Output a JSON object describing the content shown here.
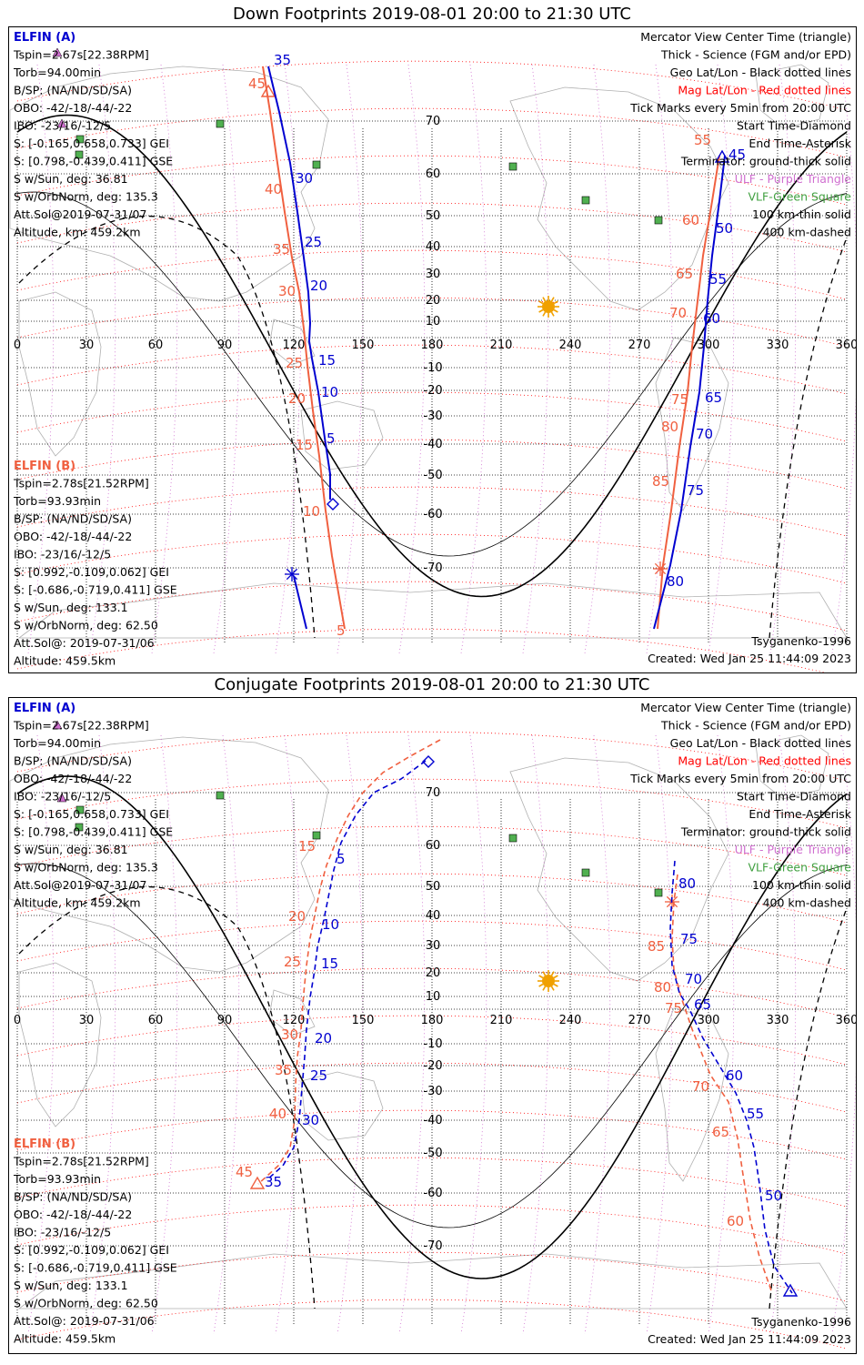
{
  "colors": {
    "probe_a": "#0000d0",
    "probe_b": "#f06040",
    "mag_grid": "#ff0000",
    "science": "#000000",
    "ulf": "#d070d0",
    "vlf": "#40a040",
    "vlf_fill": "#50b050",
    "sun": "#f0a000",
    "coast": "#b0b0b0"
  },
  "panels": [
    {
      "id": "down",
      "title": "Down Footprints 2019-08-01 20:00 to 21:30 UTC",
      "lon_ticks": [
        "0",
        "30",
        "60",
        "90",
        "120",
        "150",
        "180",
        "210",
        "240",
        "270",
        "300",
        "330",
        "360"
      ],
      "lat_ticks": [
        "70",
        "60",
        "50",
        "40",
        "30",
        "20",
        "10",
        "-10",
        "-20",
        "-30",
        "-40",
        "-50",
        "-60",
        "-70"
      ],
      "probe_a": {
        "label": "ELFIN (A)",
        "lines": [
          "Tspin=2.67s[22.38RPM]",
          "Torb=94.00min",
          "B/SP: (NA/ND/SD/SA)",
          "OBO: -42/-18/-44/-22",
          "IBO: -23/16/-12/5",
          "S: [-0.165,0.658,0.733] GEI",
          "S: [0.798,-0.439,0.411] GSE",
          "S w/Sun, deg: 36.81",
          "S w/OrbNorm, deg: 135.3",
          "Att.Sol@2019-07-31/07",
          "Altitude, km: 459.2km"
        ]
      },
      "probe_b": {
        "label": "ELFIN (B)",
        "lines": [
          "Tspin=2.78s[21.52RPM]",
          "Torb=93.93min",
          "B/SP: (NA/ND/SD/SA)",
          "OBO: -42/-18/-44/-22",
          "IBO: -23/16/-12/5",
          "S: [0.992,-0.109,0.062] GEI",
          "S: [-0.686,-0.719,0.411] GSE",
          "S w/Sun, deg: 133.1",
          "S w/OrbNorm, deg: 62.50",
          "Att.Sol@: 2019-07-31/06",
          "Altitude: 459.5km"
        ]
      },
      "legend": [
        {
          "text": "Mercator View Center Time (triangle)",
          "color": "#000000"
        },
        {
          "text": "Thick - Science (FGM and/or EPD)",
          "color": "#000000"
        },
        {
          "text": "Geo Lat/Lon - Black dotted lines",
          "color": "#000000"
        },
        {
          "text": "Mag Lat/Lon - Red dotted lines",
          "color": "#ff0000"
        },
        {
          "text": "Tick Marks every 5min from 20:00 UTC",
          "color": "#000000"
        },
        {
          "text": "Start Time-Diamond",
          "color": "#000000"
        },
        {
          "text": "End Time-Asterisk",
          "color": "#000000"
        },
        {
          "text": "Terminator: ground-thick solid",
          "color": "#000000"
        },
        {
          "text": "ULF - Purple Triangle",
          "color": "#d070d0"
        },
        {
          "text": "VLF-Green Square",
          "color": "#40a040"
        },
        {
          "text": "100 km-thin solid",
          "color": "#000000"
        },
        {
          "text": "400 km-dashed",
          "color": "#000000"
        }
      ],
      "model": "Tsyganenko-1996",
      "created": "Created: Wed Jan 25 11:44:09 2023",
      "track_a": {
        "style": "solid",
        "points": [
          [
            294,
            72
          ],
          [
            306,
            122
          ],
          [
            318,
            178
          ],
          [
            326,
            232
          ],
          [
            333,
            282
          ],
          [
            338,
            320
          ],
          [
            340,
            354
          ],
          [
            339,
            374
          ],
          [
            342,
            393
          ],
          [
            349,
            430
          ],
          [
            356,
            480
          ],
          [
            362,
            520
          ],
          [
            362,
            548
          ]
        ],
        "tail": [
          [
            322,
            632
          ],
          [
            336,
            690
          ]
        ],
        "ticks": [
          [
            "35",
            300,
            70
          ],
          [
            "30",
            324,
            200
          ],
          [
            "25",
            334,
            270
          ],
          [
            "20",
            340,
            318
          ],
          [
            "15",
            349,
            400
          ],
          [
            "10",
            352,
            435
          ],
          [
            "5",
            358,
            486
          ]
        ],
        "start": [
          365,
          553
        ],
        "end": [
          320,
          630
        ],
        "view": null
      },
      "track_b": {
        "style": "solid",
        "points": [
          [
            288,
            72
          ],
          [
            296,
            122
          ],
          [
            304,
            178
          ],
          [
            312,
            232
          ],
          [
            320,
            282
          ],
          [
            328,
            320
          ],
          [
            333,
            360
          ],
          [
            337,
            400
          ],
          [
            343,
            450
          ],
          [
            350,
            500
          ],
          [
            357,
            560
          ],
          [
            364,
            610
          ],
          [
            378,
            690
          ]
        ],
        "ticks": [
          [
            "45",
            272,
            96
          ],
          [
            "40",
            290,
            212
          ],
          [
            "35",
            299,
            278
          ],
          [
            "30",
            305,
            324
          ],
          [
            "25",
            313,
            403
          ],
          [
            "20",
            316,
            442
          ],
          [
            "15",
            324,
            493
          ],
          [
            "10",
            332,
            566
          ],
          [
            "5",
            369,
            697
          ]
        ],
        "start": null,
        "end": null,
        "view": [
          294,
          100
        ]
      },
      "track_a2": {
        "style": "solid",
        "points": [
          [
            796,
            170
          ],
          [
            790,
            220
          ],
          [
            782,
            280
          ],
          [
            777,
            330
          ],
          [
            773,
            380
          ],
          [
            768,
            430
          ],
          [
            758,
            490
          ],
          [
            748,
            560
          ],
          [
            736,
            620
          ],
          [
            718,
            690
          ]
        ],
        "ticks": [
          [
            "45",
            800,
            174
          ],
          [
            "50",
            786,
            255
          ],
          [
            "55",
            779,
            311
          ],
          [
            "60",
            772,
            354
          ],
          [
            "65",
            774,
            441
          ],
          [
            "70",
            764,
            481
          ],
          [
            "75",
            754,
            543
          ],
          [
            "80",
            732,
            643
          ]
        ],
        "start": null,
        "end": null,
        "view": [
          793,
          172
        ]
      },
      "track_b2": {
        "style": "solid",
        "points": [
          [
            790,
            170
          ],
          [
            782,
            220
          ],
          [
            772,
            280
          ],
          [
            766,
            330
          ],
          [
            760,
            380
          ],
          [
            755,
            430
          ],
          [
            746,
            490
          ],
          [
            737,
            560
          ],
          [
            728,
            620
          ],
          [
            722,
            690
          ]
        ],
        "ticks": [
          [
            "55",
            762,
            158
          ],
          [
            "60",
            749,
            246
          ],
          [
            "65",
            742,
            305
          ],
          [
            "70",
            735,
            348
          ],
          [
            "75",
            737,
            443
          ],
          [
            "80",
            726,
            473
          ],
          [
            "85",
            716,
            533
          ]
        ],
        "start": null,
        "end": [
          725,
          624
        ],
        "view": null
      },
      "sun": [
        602,
        336
      ],
      "ulf": [
        [
          67,
          135
        ],
        [
          62,
          57
        ]
      ],
      "vlf": [
        [
          241,
          135
        ],
        [
          87,
          152
        ],
        [
          86,
          169
        ],
        [
          347,
          180
        ],
        [
          563,
          182
        ],
        [
          643,
          219
        ],
        [
          723,
          241
        ]
      ]
    },
    {
      "id": "conj",
      "title": "Conjugate Footprints 2019-08-01 20:00 to 21:30 UTC",
      "lon_ticks": [
        "0",
        "30",
        "60",
        "90",
        "120",
        "150",
        "180",
        "210",
        "240",
        "270",
        "300",
        "330",
        "360"
      ],
      "lat_ticks": [
        "70",
        "60",
        "50",
        "40",
        "30",
        "20",
        "10",
        "-10",
        "-20",
        "-30",
        "-40",
        "-50",
        "-60",
        "-70"
      ],
      "probe_a": {
        "label": "ELFIN (A)",
        "lines": [
          "Tspin=2.67s[22.38RPM]",
          "Torb=94.00min",
          "B/SP: (NA/ND/SD/SA)",
          "OBO: -42/-18/-44/-22",
          "IBO: -23/16/-12/5",
          "S: [-0.165,0.658,0.733] GEI",
          "S: [0.798,-0.439,0.411] GSE",
          "S w/Sun, deg: 36.81",
          "S w/OrbNorm, deg: 135.3",
          "Att.Sol@2019-07-31/07",
          "Altitude, km: 459.2km"
        ]
      },
      "probe_b": {
        "label": "ELFIN (B)",
        "lines": [
          "Tspin=2.78s[21.52RPM]",
          "Torb=93.93min",
          "B/SP: (NA/ND/SD/SA)",
          "OBO: -42/-18/-44/-22",
          "IBO: -23/16/-12/5",
          "S: [0.992,-0.109,0.062] GEI",
          "S: [-0.686,-0.719,0.411] GSE",
          "S w/Sun, deg: 133.1",
          "S w/OrbNorm, deg: 62.50",
          "Att.Sol@: 2019-07-31/06",
          "Altitude: 459.5km"
        ]
      },
      "legend": [
        {
          "text": "Mercator View Center Time (triangle)",
          "color": "#000000"
        },
        {
          "text": "Thick - Science (FGM and/or EPD)",
          "color": "#000000"
        },
        {
          "text": "Geo Lat/Lon - Black dotted lines",
          "color": "#000000"
        },
        {
          "text": "Mag Lat/Lon - Red dotted lines",
          "color": "#ff0000"
        },
        {
          "text": "Tick Marks every 5min from 20:00 UTC",
          "color": "#000000"
        },
        {
          "text": "Start Time-Diamond",
          "color": "#000000"
        },
        {
          "text": "End Time-Asterisk",
          "color": "#000000"
        },
        {
          "text": "Terminator: ground-thick solid",
          "color": "#000000"
        },
        {
          "text": "ULF - Purple Triangle",
          "color": "#d070d0"
        },
        {
          "text": "VLF-Green Square",
          "color": "#40a040"
        },
        {
          "text": "100 km-thin solid",
          "color": "#000000"
        },
        {
          "text": "400 km-dashed",
          "color": "#000000"
        }
      ],
      "model": "Tsyganenko-1996",
      "created": "Created: Wed Jan 25 11:44:09 2023",
      "track_a": {
        "style": "dashed",
        "points": [
          [
            467,
            835
          ],
          [
            440,
            855
          ],
          [
            410,
            870
          ],
          [
            390,
            895
          ],
          [
            374,
            925
          ],
          [
            366,
            955
          ],
          [
            360,
            985
          ],
          [
            355,
            1010
          ],
          [
            348,
            1040
          ],
          [
            345,
            1065
          ],
          [
            340,
            1095
          ],
          [
            336,
            1130
          ],
          [
            334,
            1160
          ],
          [
            331,
            1195
          ],
          [
            328,
            1230
          ],
          [
            322,
            1260
          ],
          [
            310,
            1280
          ],
          [
            292,
            1296
          ]
        ],
        "ticks": [
          [
            "5",
            369,
            948
          ],
          [
            "10",
            353,
            1020
          ],
          [
            "15",
            352,
            1063
          ],
          [
            "20",
            345,
            1145
          ],
          [
            "25",
            340,
            1186
          ],
          [
            "30",
            331,
            1235
          ],
          [
            "35",
            290,
            1303
          ]
        ],
        "start": [
          470,
          836
        ],
        "end": null,
        "view": null
      },
      "track_b": {
        "style": "dashed",
        "points": [
          [
            483,
            812
          ],
          [
            450,
            830
          ],
          [
            420,
            848
          ],
          [
            398,
            870
          ],
          [
            382,
            895
          ],
          [
            370,
            920
          ],
          [
            358,
            950
          ],
          [
            351,
            975
          ],
          [
            346,
            1000
          ],
          [
            340,
            1030
          ],
          [
            336,
            1060
          ],
          [
            333,
            1090
          ],
          [
            330,
            1130
          ],
          [
            326,
            1160
          ],
          [
            324,
            1190
          ],
          [
            323,
            1230
          ],
          [
            318,
            1260
          ],
          [
            305,
            1280
          ],
          [
            283,
            1300
          ]
        ],
        "ticks": [
          [
            "15",
            327,
            934
          ],
          [
            "20",
            316,
            1011
          ],
          [
            "25",
            311,
            1061
          ],
          [
            "30",
            308,
            1141
          ],
          [
            "35",
            301,
            1180
          ],
          [
            "40",
            295,
            1228
          ],
          [
            "45",
            258,
            1292
          ]
        ],
        "start": null,
        "end": null,
        "view": [
          282,
          1300
        ]
      },
      "track_a2": {
        "style": "dashed",
        "points": [
          [
            741,
            945
          ],
          [
            738,
            980
          ],
          [
            736,
            1020
          ],
          [
            738,
            1060
          ],
          [
            746,
            1090
          ],
          [
            758,
            1110
          ],
          [
            772,
            1140
          ],
          [
            790,
            1170
          ],
          [
            808,
            1200
          ],
          [
            820,
            1230
          ],
          [
            828,
            1260
          ],
          [
            834,
            1300
          ],
          [
            840,
            1350
          ],
          [
            850,
            1390
          ],
          [
            870,
            1420
          ]
        ],
        "ticks": [
          [
            "80",
            745,
            975
          ],
          [
            "75",
            747,
            1036
          ],
          [
            "70",
            752,
            1080
          ],
          [
            "65",
            762,
            1108
          ],
          [
            "60",
            797,
            1186
          ],
          [
            "55",
            820,
            1228
          ],
          [
            "50",
            840,
            1318
          ]
        ],
        "start": null,
        "end": null,
        "view": [
          868,
          1418
        ]
      },
      "track_b2": {
        "style": "dashed",
        "points": [
          [
            744,
            960
          ],
          [
            740,
            990
          ],
          [
            738,
            1030
          ],
          [
            740,
            1065
          ],
          [
            748,
            1095
          ],
          [
            760,
            1130
          ],
          [
            780,
            1180
          ],
          [
            800,
            1210
          ],
          [
            810,
            1250
          ],
          [
            816,
            1290
          ],
          [
            824,
            1340
          ],
          [
            834,
            1380
          ],
          [
            848,
            1420
          ]
        ],
        "ticks": [
          [
            "85",
            711,
            1044
          ],
          [
            "80",
            718,
            1089
          ],
          [
            "75",
            730,
            1112
          ],
          [
            "70",
            760,
            1198
          ],
          [
            "65",
            782,
            1248
          ],
          [
            "60",
            798,
            1346
          ]
        ],
        "start": null,
        "end": [
          738,
          990
        ],
        "view": null
      },
      "sun": [
        602,
        1077
      ],
      "ulf": [
        [
          67,
          876
        ],
        [
          62,
          796
        ]
      ],
      "vlf": [
        [
          241,
          873
        ],
        [
          87,
          889
        ],
        [
          86,
          908
        ],
        [
          347,
          917
        ],
        [
          563,
          920
        ],
        [
          643,
          958
        ],
        [
          723,
          980
        ]
      ]
    }
  ]
}
